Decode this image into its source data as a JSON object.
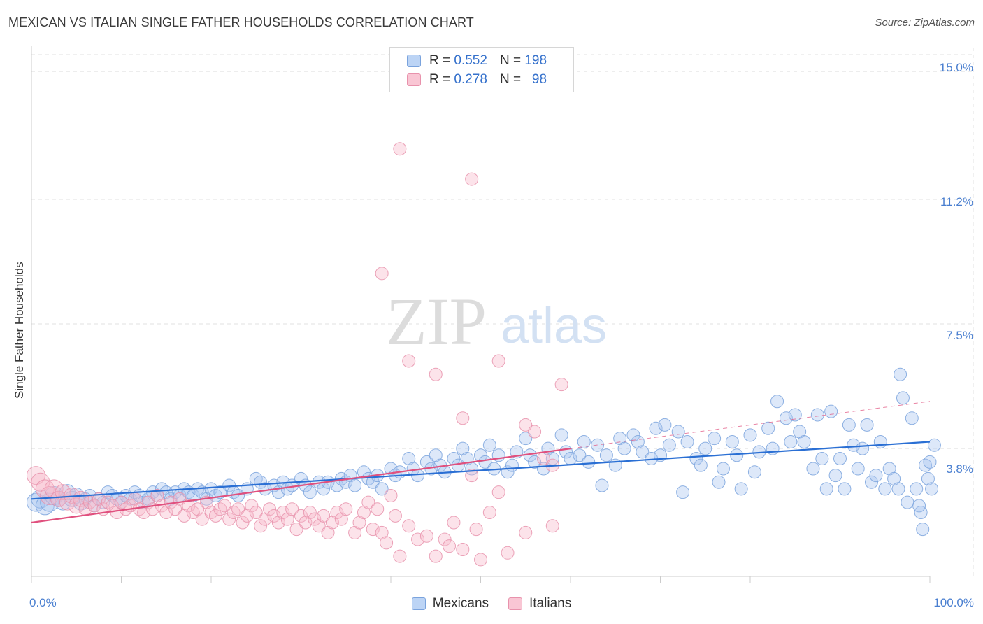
{
  "chart_data": {
    "type": "scatter",
    "title": "MEXICAN VS ITALIAN SINGLE FATHER HOUSEHOLDS CORRELATION CHART",
    "source": "Source: ZipAtlas.com",
    "xlabel": "",
    "ylabel": "Single Father Households",
    "xlim": [
      0,
      100
    ],
    "ylim": [
      0,
      15.5
    ],
    "x_tick_labels": [
      "0.0%",
      "100.0%"
    ],
    "y_ticks": [
      {
        "value": 3.8,
        "label": "3.8%"
      },
      {
        "value": 7.5,
        "label": "7.5%"
      },
      {
        "value": 11.2,
        "label": "11.2%"
      },
      {
        "value": 15.0,
        "label": "15.0%"
      }
    ],
    "grid": true,
    "watermark": "ZIPatlas",
    "legend_stats": [
      {
        "series": "Mexicans",
        "r_label": "R =",
        "r": "0.552",
        "n_label": "N =",
        "n": "198"
      },
      {
        "series": "Italians",
        "r_label": "R =",
        "r": "0.278",
        "n_label": "N =",
        "n": "98"
      }
    ],
    "series": [
      {
        "name": "Mexicans",
        "color": "#7aa3dd",
        "fill": "#a9c6f0",
        "trend": {
          "x": [
            0,
            100
          ],
          "y": [
            2.3,
            4.0
          ],
          "style": "solid",
          "color": "#2a6fd4"
        },
        "points": [
          [
            0.5,
            2.2
          ],
          [
            1,
            2.3
          ],
          [
            1.5,
            2.1
          ],
          [
            2,
            2.2
          ],
          [
            2.5,
            2.4
          ],
          [
            3,
            2.3
          ],
          [
            3.5,
            2.2
          ],
          [
            4,
            2.5
          ],
          [
            4.5,
            2.3
          ],
          [
            5,
            2.4
          ],
          [
            5.5,
            2.2
          ],
          [
            6,
            2.3
          ],
          [
            6.5,
            2.4
          ],
          [
            7,
            2.1
          ],
          [
            7.5,
            2.3
          ],
          [
            8,
            2.2
          ],
          [
            8.5,
            2.5
          ],
          [
            9,
            2.4
          ],
          [
            9.5,
            2.3
          ],
          [
            10,
            2.2
          ],
          [
            10.5,
            2.4
          ],
          [
            11,
            2.3
          ],
          [
            11.5,
            2.5
          ],
          [
            12,
            2.4
          ],
          [
            12.5,
            2.2
          ],
          [
            13,
            2.3
          ],
          [
            13.5,
            2.5
          ],
          [
            14,
            2.4
          ],
          [
            14.5,
            2.6
          ],
          [
            15,
            2.5
          ],
          [
            15.5,
            2.3
          ],
          [
            16,
            2.5
          ],
          [
            16.5,
            2.4
          ],
          [
            17,
            2.6
          ],
          [
            17.5,
            2.5
          ],
          [
            18,
            2.4
          ],
          [
            18.5,
            2.6
          ],
          [
            19,
            2.5
          ],
          [
            19.5,
            2.3
          ],
          [
            20,
            2.6
          ],
          [
            20.5,
            2.4
          ],
          [
            21,
            2.5
          ],
          [
            22,
            2.7
          ],
          [
            22.5,
            2.5
          ],
          [
            23,
            2.4
          ],
          [
            24,
            2.6
          ],
          [
            25,
            2.9
          ],
          [
            25.5,
            2.8
          ],
          [
            26,
            2.6
          ],
          [
            27,
            2.7
          ],
          [
            27.5,
            2.5
          ],
          [
            28,
            2.8
          ],
          [
            28.5,
            2.6
          ],
          [
            29,
            2.7
          ],
          [
            30,
            2.9
          ],
          [
            30.5,
            2.7
          ],
          [
            31,
            2.5
          ],
          [
            32,
            2.8
          ],
          [
            32.5,
            2.6
          ],
          [
            33,
            2.8
          ],
          [
            34,
            2.7
          ],
          [
            34.5,
            2.9
          ],
          [
            35,
            2.8
          ],
          [
            35.5,
            3.0
          ],
          [
            36,
            2.7
          ],
          [
            37,
            3.1
          ],
          [
            37.5,
            2.9
          ],
          [
            38,
            2.8
          ],
          [
            38.5,
            3.0
          ],
          [
            39,
            2.6
          ],
          [
            40,
            3.2
          ],
          [
            40.5,
            3.0
          ],
          [
            41,
            3.1
          ],
          [
            42,
            3.5
          ],
          [
            42.5,
            3.2
          ],
          [
            43,
            3.0
          ],
          [
            44,
            3.4
          ],
          [
            44.5,
            3.2
          ],
          [
            45,
            3.6
          ],
          [
            45.5,
            3.3
          ],
          [
            46,
            3.1
          ],
          [
            47,
            3.5
          ],
          [
            47.5,
            3.3
          ],
          [
            48,
            3.8
          ],
          [
            48.5,
            3.5
          ],
          [
            49,
            3.2
          ],
          [
            50,
            3.6
          ],
          [
            50.5,
            3.4
          ],
          [
            51,
            3.9
          ],
          [
            51.5,
            3.2
          ],
          [
            52,
            3.6
          ],
          [
            53,
            3.1
          ],
          [
            53.5,
            3.3
          ],
          [
            54,
            3.7
          ],
          [
            55,
            4.1
          ],
          [
            55.5,
            3.6
          ],
          [
            56,
            3.4
          ],
          [
            57,
            3.2
          ],
          [
            57.5,
            3.8
          ],
          [
            58,
            3.5
          ],
          [
            59,
            4.2
          ],
          [
            59.5,
            3.7
          ],
          [
            60,
            3.5
          ],
          [
            61,
            3.6
          ],
          [
            61.5,
            4.0
          ],
          [
            62,
            3.4
          ],
          [
            63,
            3.9
          ],
          [
            63.5,
            2.7
          ],
          [
            64,
            3.6
          ],
          [
            65,
            3.3
          ],
          [
            65.5,
            4.1
          ],
          [
            66,
            3.8
          ],
          [
            67,
            4.2
          ],
          [
            67.5,
            4.0
          ],
          [
            68,
            3.7
          ],
          [
            69,
            3.5
          ],
          [
            69.5,
            4.4
          ],
          [
            70,
            3.6
          ],
          [
            70.5,
            4.5
          ],
          [
            71,
            3.9
          ],
          [
            72,
            4.3
          ],
          [
            72.5,
            2.5
          ],
          [
            73,
            4.0
          ],
          [
            74,
            3.5
          ],
          [
            74.5,
            3.3
          ],
          [
            75,
            3.8
          ],
          [
            76,
            4.1
          ],
          [
            76.5,
            2.8
          ],
          [
            77,
            3.2
          ],
          [
            78,
            4.0
          ],
          [
            78.5,
            3.6
          ],
          [
            79,
            2.6
          ],
          [
            80,
            4.2
          ],
          [
            80.5,
            3.1
          ],
          [
            81,
            3.7
          ],
          [
            82,
            4.4
          ],
          [
            82.5,
            3.8
          ],
          [
            83,
            5.2
          ],
          [
            84,
            4.7
          ],
          [
            84.5,
            4.0
          ],
          [
            85,
            4.8
          ],
          [
            85.5,
            4.3
          ],
          [
            86,
            4.0
          ],
          [
            87,
            3.2
          ],
          [
            87.5,
            4.8
          ],
          [
            88,
            3.5
          ],
          [
            88.5,
            2.6
          ],
          [
            89,
            4.9
          ],
          [
            89.5,
            3.0
          ],
          [
            90,
            3.5
          ],
          [
            90.5,
            2.6
          ],
          [
            91,
            4.5
          ],
          [
            91.5,
            3.9
          ],
          [
            92,
            3.2
          ],
          [
            92.5,
            3.8
          ],
          [
            93,
            4.5
          ],
          [
            93.5,
            2.8
          ],
          [
            94,
            3.0
          ],
          [
            94.5,
            4.0
          ],
          [
            95,
            2.6
          ],
          [
            95.5,
            3.2
          ],
          [
            96,
            2.9
          ],
          [
            96.5,
            2.6
          ],
          [
            97,
            5.3
          ],
          [
            97.5,
            2.2
          ],
          [
            98,
            4.7
          ],
          [
            98.5,
            2.6
          ],
          [
            99,
            1.9
          ],
          [
            99.5,
            3.3
          ],
          [
            100,
            3.4
          ],
          [
            96.7,
            6.0
          ],
          [
            98.8,
            2.1
          ],
          [
            99.2,
            1.4
          ],
          [
            99.8,
            2.9
          ],
          [
            100.2,
            2.6
          ],
          [
            100.5,
            3.9
          ]
        ]
      },
      {
        "name": "Italians",
        "color": "#e892ac",
        "fill": "#f7b8cb",
        "trend": {
          "x": [
            0,
            60
          ],
          "y": [
            1.6,
            3.8
          ],
          "style": "solid",
          "color": "#e0507e",
          "ext": {
            "x": [
              60,
              100
            ],
            "y": [
              3.8,
              5.2
            ],
            "style": "dashed"
          }
        },
        "points": [
          [
            0.5,
            3.0
          ],
          [
            1,
            2.8
          ],
          [
            1.5,
            2.6
          ],
          [
            2,
            2.4
          ],
          [
            2.5,
            2.6
          ],
          [
            3,
            2.3
          ],
          [
            3.5,
            2.5
          ],
          [
            4,
            2.2
          ],
          [
            4.5,
            2.4
          ],
          [
            5,
            2.1
          ],
          [
            5.5,
            2.3
          ],
          [
            6,
            2.0
          ],
          [
            6.5,
            2.2
          ],
          [
            7,
            2.1
          ],
          [
            7.5,
            2.3
          ],
          [
            8,
            2.0
          ],
          [
            8.5,
            2.2
          ],
          [
            9,
            2.1
          ],
          [
            9.5,
            1.9
          ],
          [
            10,
            2.2
          ],
          [
            10.5,
            2.0
          ],
          [
            11,
            2.1
          ],
          [
            11.5,
            2.3
          ],
          [
            12,
            2.0
          ],
          [
            12.5,
            1.9
          ],
          [
            13,
            2.2
          ],
          [
            13.5,
            2.0
          ],
          [
            14,
            2.4
          ],
          [
            14.5,
            2.1
          ],
          [
            15,
            1.9
          ],
          [
            15.5,
            2.2
          ],
          [
            16,
            2.0
          ],
          [
            16.5,
            2.3
          ],
          [
            17,
            1.8
          ],
          [
            17.5,
            2.1
          ],
          [
            18,
            1.9
          ],
          [
            18.5,
            2.0
          ],
          [
            19,
            1.7
          ],
          [
            19.5,
            2.2
          ],
          [
            20,
            1.9
          ],
          [
            20.5,
            1.8
          ],
          [
            21,
            2.0
          ],
          [
            21.5,
            2.1
          ],
          [
            22,
            1.7
          ],
          [
            22.5,
            1.9
          ],
          [
            23,
            2.0
          ],
          [
            23.5,
            1.6
          ],
          [
            24,
            1.8
          ],
          [
            24.5,
            2.1
          ],
          [
            25,
            1.9
          ],
          [
            25.5,
            1.5
          ],
          [
            26,
            1.7
          ],
          [
            26.5,
            2.0
          ],
          [
            27,
            1.8
          ],
          [
            27.5,
            1.6
          ],
          [
            28,
            1.9
          ],
          [
            28.5,
            1.7
          ],
          [
            29,
            2.0
          ],
          [
            29.5,
            1.4
          ],
          [
            30,
            1.8
          ],
          [
            30.5,
            1.6
          ],
          [
            31,
            1.9
          ],
          [
            31.5,
            1.7
          ],
          [
            32,
            1.5
          ],
          [
            32.5,
            1.8
          ],
          [
            33,
            1.3
          ],
          [
            33.5,
            1.6
          ],
          [
            34,
            1.9
          ],
          [
            34.5,
            1.7
          ],
          [
            35,
            2.0
          ],
          [
            36,
            1.3
          ],
          [
            36.5,
            1.6
          ],
          [
            37,
            1.9
          ],
          [
            37.5,
            2.2
          ],
          [
            38,
            1.4
          ],
          [
            38.5,
            2.0
          ],
          [
            39,
            1.3
          ],
          [
            39.5,
            1.0
          ],
          [
            40,
            2.4
          ],
          [
            40.5,
            1.8
          ],
          [
            41,
            0.6
          ],
          [
            42,
            1.5
          ],
          [
            43,
            1.1
          ],
          [
            44,
            1.2
          ],
          [
            45,
            0.6
          ],
          [
            46,
            1.1
          ],
          [
            46.5,
            0.9
          ],
          [
            47,
            1.6
          ],
          [
            48,
            0.8
          ],
          [
            49,
            3.0
          ],
          [
            49.5,
            1.4
          ],
          [
            50,
            0.5
          ],
          [
            51,
            1.9
          ],
          [
            52,
            2.5
          ],
          [
            53,
            0.7
          ],
          [
            55,
            4.5
          ],
          [
            56,
            4.3
          ],
          [
            57,
            3.5
          ],
          [
            58,
            3.3
          ],
          [
            59,
            5.7
          ],
          [
            48,
            4.7
          ],
          [
            39,
            9.0
          ],
          [
            42,
            6.4
          ],
          [
            45,
            6.0
          ],
          [
            52,
            6.4
          ],
          [
            41,
            12.7
          ],
          [
            49,
            11.8
          ],
          [
            55,
            1.3
          ],
          [
            58,
            1.5
          ]
        ]
      }
    ]
  }
}
